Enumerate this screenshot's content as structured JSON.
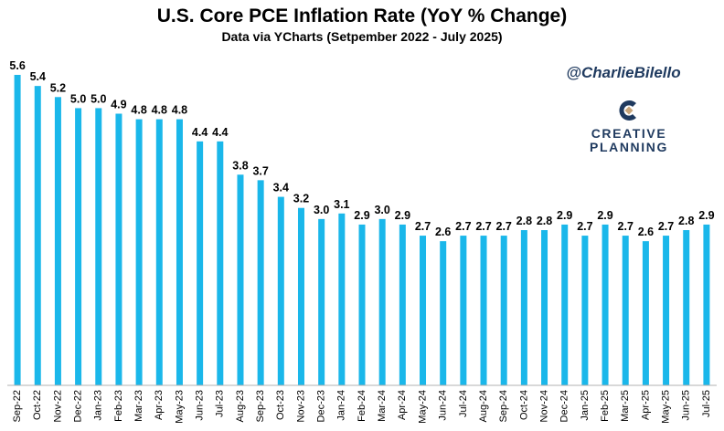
{
  "colors": {
    "bar": "#1ab7ea",
    "text": "#000000",
    "axis": "#b0b0b0",
    "handle": "#1f3a5f",
    "brand": "#1f3a5f",
    "logo_accent": "#c8a57a"
  },
  "watermark": {
    "handle": "@CharlieBilello",
    "brand_line1": "CREATIVE",
    "brand_line2": "PLANNING",
    "logo_icon": "creative-planning-logo-icon"
  },
  "chart_data": {
    "type": "bar",
    "title": "U.S. Core PCE Inflation Rate (YoY % Change)",
    "subtitle": "Data via YCharts (Setpember 2022 - July 2025)",
    "xlabel": "",
    "ylabel": "",
    "ylim": [
      0,
      5.9
    ],
    "grid": false,
    "legend": "none",
    "categories": [
      "Sep-22",
      "Oct-22",
      "Nov-22",
      "Dec-22",
      "Jan-23",
      "Feb-23",
      "Mar-23",
      "Apr-23",
      "May-23",
      "Jun-23",
      "Jul-23",
      "Aug-23",
      "Sep-23",
      "Oct-23",
      "Nov-23",
      "Dec-23",
      "Jan-24",
      "Feb-24",
      "Mar-24",
      "Apr-24",
      "May-24",
      "Jun-24",
      "Jul-24",
      "Aug-24",
      "Sep-24",
      "Oct-24",
      "Nov-24",
      "Dec-24",
      "Jan-25",
      "Feb-25",
      "Mar-25",
      "Apr-25",
      "May-25",
      "Jun-25",
      "Jul-25"
    ],
    "values": [
      5.6,
      5.4,
      5.2,
      5.0,
      5.0,
      4.9,
      4.8,
      4.8,
      4.8,
      4.4,
      4.4,
      3.8,
      3.7,
      3.4,
      3.2,
      3.0,
      3.1,
      2.9,
      3.0,
      2.9,
      2.7,
      2.6,
      2.7,
      2.7,
      2.7,
      2.8,
      2.8,
      2.9,
      2.7,
      2.9,
      2.7,
      2.6,
      2.7,
      2.8,
      2.9
    ],
    "value_labels": [
      "5.6",
      "5.4",
      "5.2",
      "5.0",
      "5.0",
      "4.9",
      "4.8",
      "4.8",
      "4.8",
      "4.4",
      "4.4",
      "3.8",
      "3.7",
      "3.4",
      "3.2",
      "3.0",
      "3.1",
      "2.9",
      "3.0",
      "2.9",
      "2.7",
      "2.6",
      "2.7",
      "2.7",
      "2.7",
      "2.8",
      "2.8",
      "2.9",
      "2.7",
      "2.9",
      "2.7",
      "2.6",
      "2.7",
      "2.8",
      "2.9"
    ]
  }
}
